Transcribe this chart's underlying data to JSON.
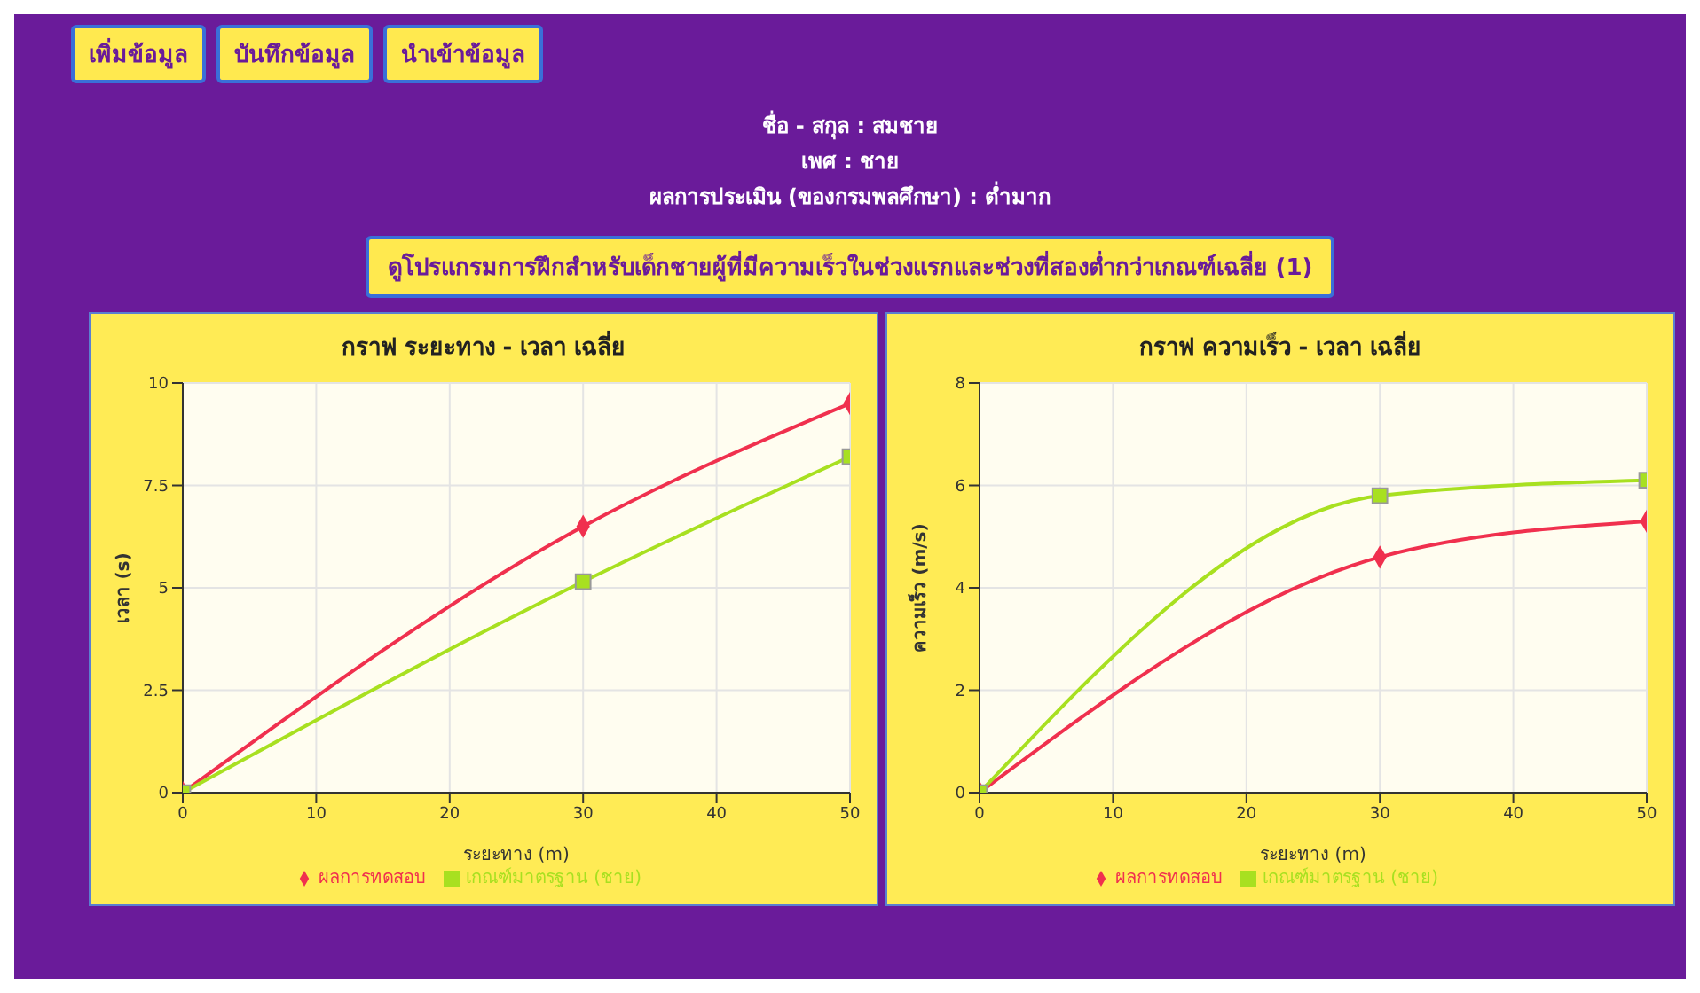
{
  "chart_data": [
    {
      "type": "other",
      "annotations": [
        "เพิ่มข้อมูล",
        "บันทึกข้อมูล",
        "นำเข้าข้อมูล",
        "ชื่อ - สกุล : สมชาย",
        "เพศ : ชาย",
        "ผลการประเมิน (ของกรมพลศึกษา) : ต่ำมาก",
        "ดูโปรแกรมการฝึกสำหรับเด็กชายผู้ที่มีความเร็วในช่วงแรกและช่วงที่สองต่ำกว่าเกณฑ์เฉลี่ย (1)"
      ]
    },
    {
      "type": "line",
      "title": "กราฟ ระยะทาง - เวลา เฉลี่ย",
      "xlabel": "ระยะทาง (m)",
      "ylabel": "เวลา (s)",
      "x": [
        0,
        30,
        50
      ],
      "xlim": [
        0,
        50
      ],
      "xticks": [
        0,
        10,
        20,
        30,
        40,
        50
      ],
      "ylim": [
        0,
        10
      ],
      "yticks": [
        0,
        2.5,
        5,
        7.5,
        10
      ],
      "grid": true,
      "legend": "bottom",
      "series": [
        {
          "name": "ผลการทดสอบ",
          "color": "#f0304e",
          "marker": "diamond",
          "values": [
            0,
            6.5,
            9.5
          ]
        },
        {
          "name": "เกณฑ์มาตรฐาน (ชาย)",
          "color": "#a8e020",
          "marker": "square",
          "values": [
            0,
            5.15,
            8.2
          ]
        }
      ]
    },
    {
      "type": "line",
      "title": "กราฟ ความเร็ว - เวลา เฉลี่ย",
      "xlabel": "ระยะทาง (m)",
      "ylabel": "ความเร็ว (m/s)",
      "x": [
        0,
        30,
        50
      ],
      "xlim": [
        0,
        50
      ],
      "xticks": [
        0,
        10,
        20,
        30,
        40,
        50
      ],
      "ylim": [
        0,
        8
      ],
      "yticks": [
        0,
        2,
        4,
        6,
        8
      ],
      "grid": true,
      "legend": "bottom",
      "series": [
        {
          "name": "ผลการทดสอบ",
          "color": "#f0304e",
          "marker": "diamond",
          "values": [
            0,
            4.6,
            5.3
          ]
        },
        {
          "name": "เกณฑ์มาตรฐาน (ชาย)",
          "color": "#a8e020",
          "marker": "square",
          "values": [
            0,
            5.8,
            6.1
          ]
        }
      ]
    }
  ]
}
